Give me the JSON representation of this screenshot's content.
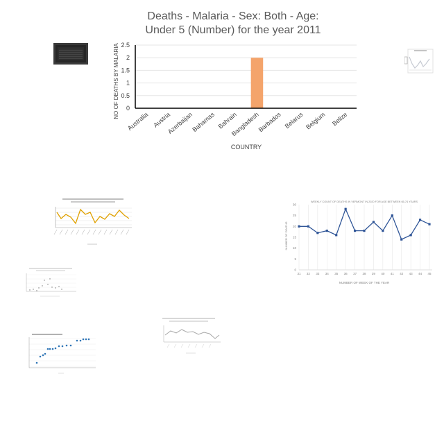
{
  "chart_data": {
    "type": "bar",
    "title_lines": [
      "Deaths - Malaria - Sex: Both - Age:",
      "Under 5 (Number) for the year 2011"
    ],
    "xlabel": "COUNTRY",
    "ylabel": "NO OF DEATHS BY MALARIA",
    "categories": [
      "Australia",
      "Austria",
      "Azerbaijan",
      "Bahamas",
      "Bahrain",
      "Bangladesh",
      "Barbados",
      "Belarus",
      "Belgium",
      "Belize"
    ],
    "values": [
      0,
      0,
      0,
      0,
      0,
      2,
      0,
      0,
      0,
      0
    ],
    "ylim": [
      0,
      2.5
    ],
    "yticks": [
      "0",
      "0.5",
      "1",
      "1.5",
      "2",
      "2.5"
    ],
    "grid": true,
    "legend": "none",
    "bar_color": "#f4a46b",
    "grid_color": "#e6e6e6",
    "axis_color": "#000000"
  },
  "thumbnails": {
    "vermont": {
      "title": "WEEKLY COUNT OF DEATHS IN VERMONT IN 2020 FOR AGE BETWEEN 65-74 YEARS",
      "xlabel": "NUMBER OF WEEK OF THE YEAR",
      "ylabel": "NUMBER OF DEATHS",
      "x": [
        "31",
        "32",
        "33",
        "34",
        "35",
        "36",
        "37",
        "38",
        "39",
        "40",
        "41",
        "42",
        "43",
        "44",
        "45"
      ],
      "values": [
        20,
        20,
        17,
        18,
        16,
        28,
        18,
        18,
        22,
        18,
        25,
        14,
        16,
        23,
        21
      ],
      "yticks": [
        "0",
        "5",
        "10",
        "15",
        "20",
        "25",
        "30"
      ],
      "ylim": [
        0,
        30
      ],
      "color": "#2f5597"
    },
    "air_quality": {
      "color": "#e0a100"
    },
    "fig": {
      "color": "#2e75b6"
    }
  }
}
